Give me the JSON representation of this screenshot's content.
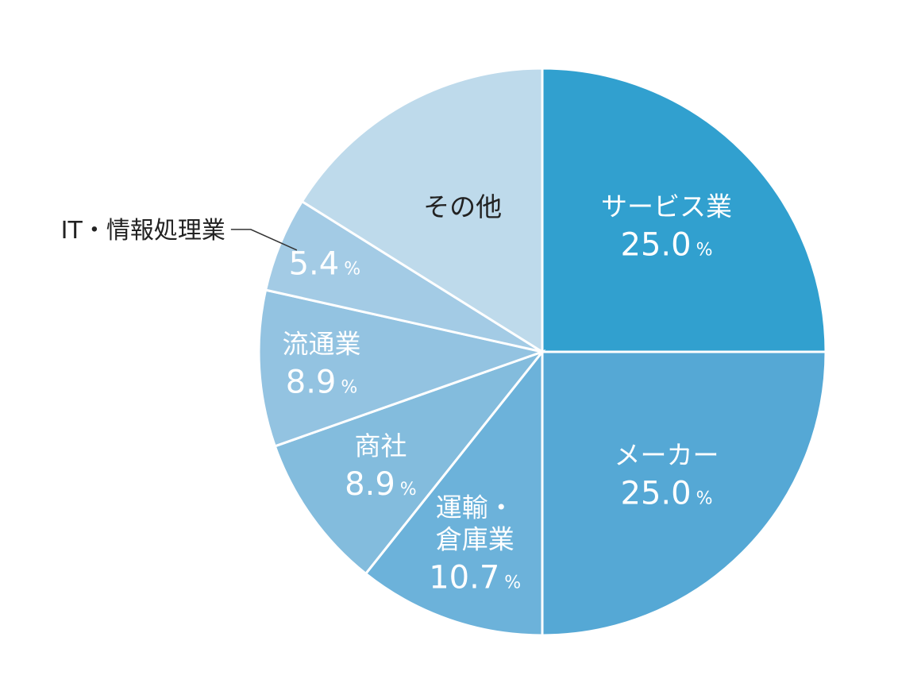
{
  "chart_data": {
    "type": "pie",
    "title": "",
    "unit": "%",
    "slices": [
      {
        "label": "サービス業",
        "label_lines": [
          "サービス業"
        ],
        "value": 25.0,
        "value_text": "25.0",
        "color": "#31a0cf",
        "text_color": "#ffffff"
      },
      {
        "label": "メーカー",
        "label_lines": [
          "メーカー"
        ],
        "value": 25.0,
        "value_text": "25.0",
        "color": "#55a8d5",
        "text_color": "#ffffff"
      },
      {
        "label": "運輸・倉庫業",
        "label_lines": [
          "運輸・",
          "倉庫業"
        ],
        "value": 10.7,
        "value_text": "10.7",
        "color": "#6cb2da",
        "text_color": "#ffffff"
      },
      {
        "label": "商社",
        "label_lines": [
          "商社"
        ],
        "value": 8.9,
        "value_text": "8.9",
        "color": "#83bcdd",
        "text_color": "#ffffff"
      },
      {
        "label": "流通業",
        "label_lines": [
          "流通業"
        ],
        "value": 8.9,
        "value_text": "8.9",
        "color": "#93c3e1",
        "text_color": "#ffffff"
      },
      {
        "label": "IT・情報処理業",
        "label_lines": [],
        "external_label": "IT・情報処理業",
        "value": 5.4,
        "value_text": "5.4",
        "color": "#a3cbe5",
        "text_color": "#ffffff"
      },
      {
        "label": "その他",
        "label_lines": [
          "その他"
        ],
        "value": 16.1,
        "value_text": "",
        "color": "#bedaeb",
        "text_color": "#222222"
      }
    ],
    "start_angle_deg": 0,
    "direction": "clockwise",
    "legend": "none"
  }
}
